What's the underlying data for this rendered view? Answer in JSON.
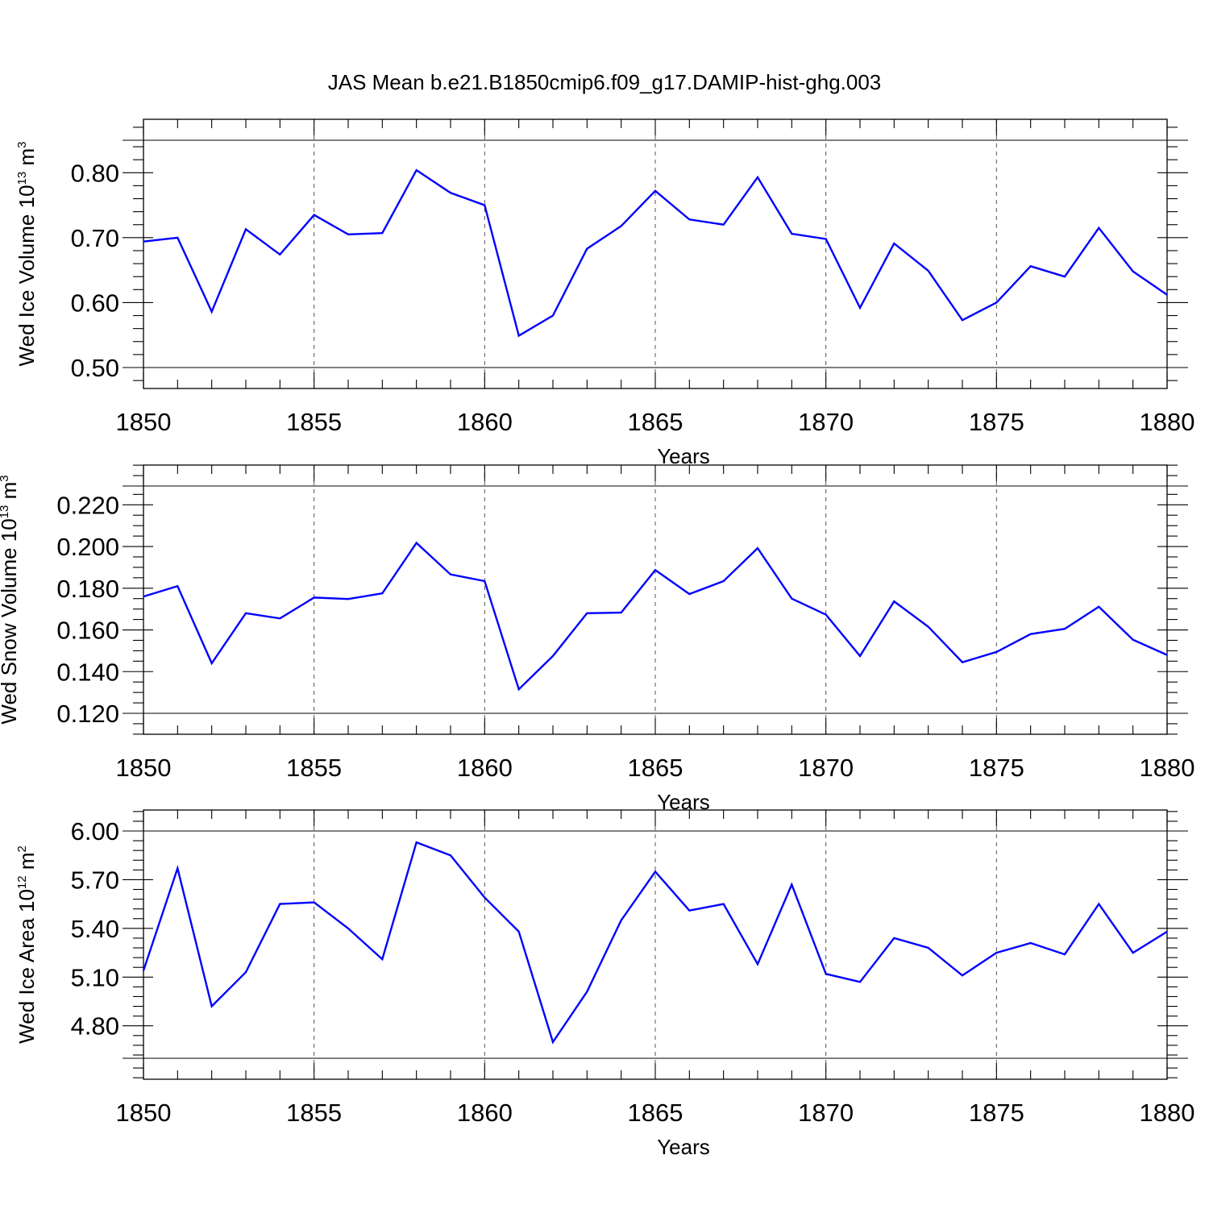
{
  "figure_title": "JAS Mean b.e21.B1850cmip6.f09_g17.DAMIP-hist-ghg.003",
  "chart_data": [
    {
      "type": "line",
      "title": "JAS Mean b.e21.B1850cmip6.f09_g17.DAMIP-hist-ghg.003",
      "xlabel": "Years",
      "ylabel": {
        "text": "Wed Ice Volume 10",
        "sup": "13",
        "unit": " m",
        "unit_sup": "3"
      },
      "xlim": [
        1850,
        1880
      ],
      "ylim": [
        0.5,
        0.85
      ],
      "x_ticks": [
        1850,
        1855,
        1860,
        1865,
        1870,
        1875,
        1880
      ],
      "x_tick_labels": [
        "1850",
        "1855",
        "1860",
        "1865",
        "1870",
        "1875",
        "1880"
      ],
      "y_ticks": [
        0.5,
        0.6,
        0.7,
        0.8
      ],
      "y_tick_labels": [
        "0.50",
        "0.60",
        "0.70",
        "0.80"
      ],
      "y_minor_step": 0.02,
      "grid": "x-dashed",
      "x": [
        1850,
        1851,
        1852,
        1853,
        1854,
        1855,
        1856,
        1857,
        1858,
        1859,
        1860,
        1861,
        1862,
        1863,
        1864,
        1865,
        1866,
        1867,
        1868,
        1869,
        1870,
        1871,
        1872,
        1873,
        1874,
        1875,
        1876,
        1877,
        1878,
        1879,
        1880
      ],
      "series": [
        {
          "color": "#0000ff",
          "values": [
            0.694,
            0.7,
            0.586,
            0.713,
            0.674,
            0.735,
            0.705,
            0.707,
            0.804,
            0.769,
            0.75,
            0.549,
            0.58,
            0.683,
            0.718,
            0.772,
            0.728,
            0.72,
            0.793,
            0.706,
            0.698,
            0.592,
            0.691,
            0.649,
            0.573,
            0.6,
            0.656,
            0.64,
            0.715,
            0.648,
            0.612
          ]
        }
      ]
    },
    {
      "type": "line",
      "xlabel": "Years",
      "ylabel": {
        "text": "Wed Snow Volume 10",
        "sup": "13",
        "unit": " m",
        "unit_sup": "3"
      },
      "xlim": [
        1850,
        1880
      ],
      "ylim": [
        0.12,
        0.229
      ],
      "x_ticks": [
        1850,
        1855,
        1860,
        1865,
        1870,
        1875,
        1880
      ],
      "x_tick_labels": [
        "1850",
        "1855",
        "1860",
        "1865",
        "1870",
        "1875",
        "1880"
      ],
      "y_ticks": [
        0.12,
        0.14,
        0.16,
        0.18,
        0.2,
        0.22
      ],
      "y_tick_labels": [
        "0.120",
        "0.140",
        "0.160",
        "0.180",
        "0.200",
        "0.220"
      ],
      "y_minor_step": 0.005,
      "grid": "x-dashed",
      "x": [
        1850,
        1851,
        1852,
        1853,
        1854,
        1855,
        1856,
        1857,
        1858,
        1859,
        1860,
        1861,
        1862,
        1863,
        1864,
        1865,
        1866,
        1867,
        1868,
        1869,
        1870,
        1871,
        1872,
        1873,
        1874,
        1875,
        1876,
        1877,
        1878,
        1879,
        1880
      ],
      "series": [
        {
          "color": "#0000ff",
          "values": [
            0.176,
            0.181,
            0.144,
            0.168,
            0.1655,
            0.1755,
            0.1748,
            0.1775,
            0.2017,
            0.1866,
            0.1834,
            0.1315,
            0.1475,
            0.168,
            0.1683,
            0.1887,
            0.1772,
            0.1834,
            0.1992,
            0.175,
            0.1673,
            0.1475,
            0.1737,
            0.1615,
            0.1445,
            0.1494,
            0.158,
            0.1605,
            0.1711,
            0.1553,
            0.148
          ]
        }
      ]
    },
    {
      "type": "line",
      "xlabel": "Years",
      "ylabel": {
        "text": "Wed Ice Area 10",
        "sup": "12",
        "unit": " m",
        "unit_sup": "2"
      },
      "xlim": [
        1850,
        1880
      ],
      "ylim": [
        4.6,
        6.0
      ],
      "x_ticks": [
        1850,
        1855,
        1860,
        1865,
        1870,
        1875,
        1880
      ],
      "x_tick_labels": [
        "1850",
        "1855",
        "1860",
        "1865",
        "1870",
        "1875",
        "1880"
      ],
      "y_ticks": [
        4.8,
        5.1,
        5.4,
        5.7,
        6.0
      ],
      "y_tick_labels": [
        "4.80",
        "5.10",
        "5.40",
        "5.70",
        "6.00"
      ],
      "y_minor_step": 0.06,
      "grid": "x-dashed",
      "x": [
        1850,
        1851,
        1852,
        1853,
        1854,
        1855,
        1856,
        1857,
        1858,
        1859,
        1860,
        1861,
        1862,
        1863,
        1864,
        1865,
        1866,
        1867,
        1868,
        1869,
        1870,
        1871,
        1872,
        1873,
        1874,
        1875,
        1876,
        1877,
        1878,
        1879,
        1880
      ],
      "series": [
        {
          "color": "#0000ff",
          "values": [
            5.14,
            5.77,
            4.92,
            5.13,
            5.55,
            5.56,
            5.4,
            5.21,
            5.93,
            5.85,
            5.59,
            5.38,
            4.7,
            5.01,
            5.45,
            5.75,
            5.51,
            5.55,
            5.18,
            5.67,
            5.12,
            5.07,
            5.34,
            5.28,
            5.11,
            5.25,
            5.31,
            5.24,
            5.55,
            5.25,
            5.38
          ]
        }
      ]
    }
  ]
}
